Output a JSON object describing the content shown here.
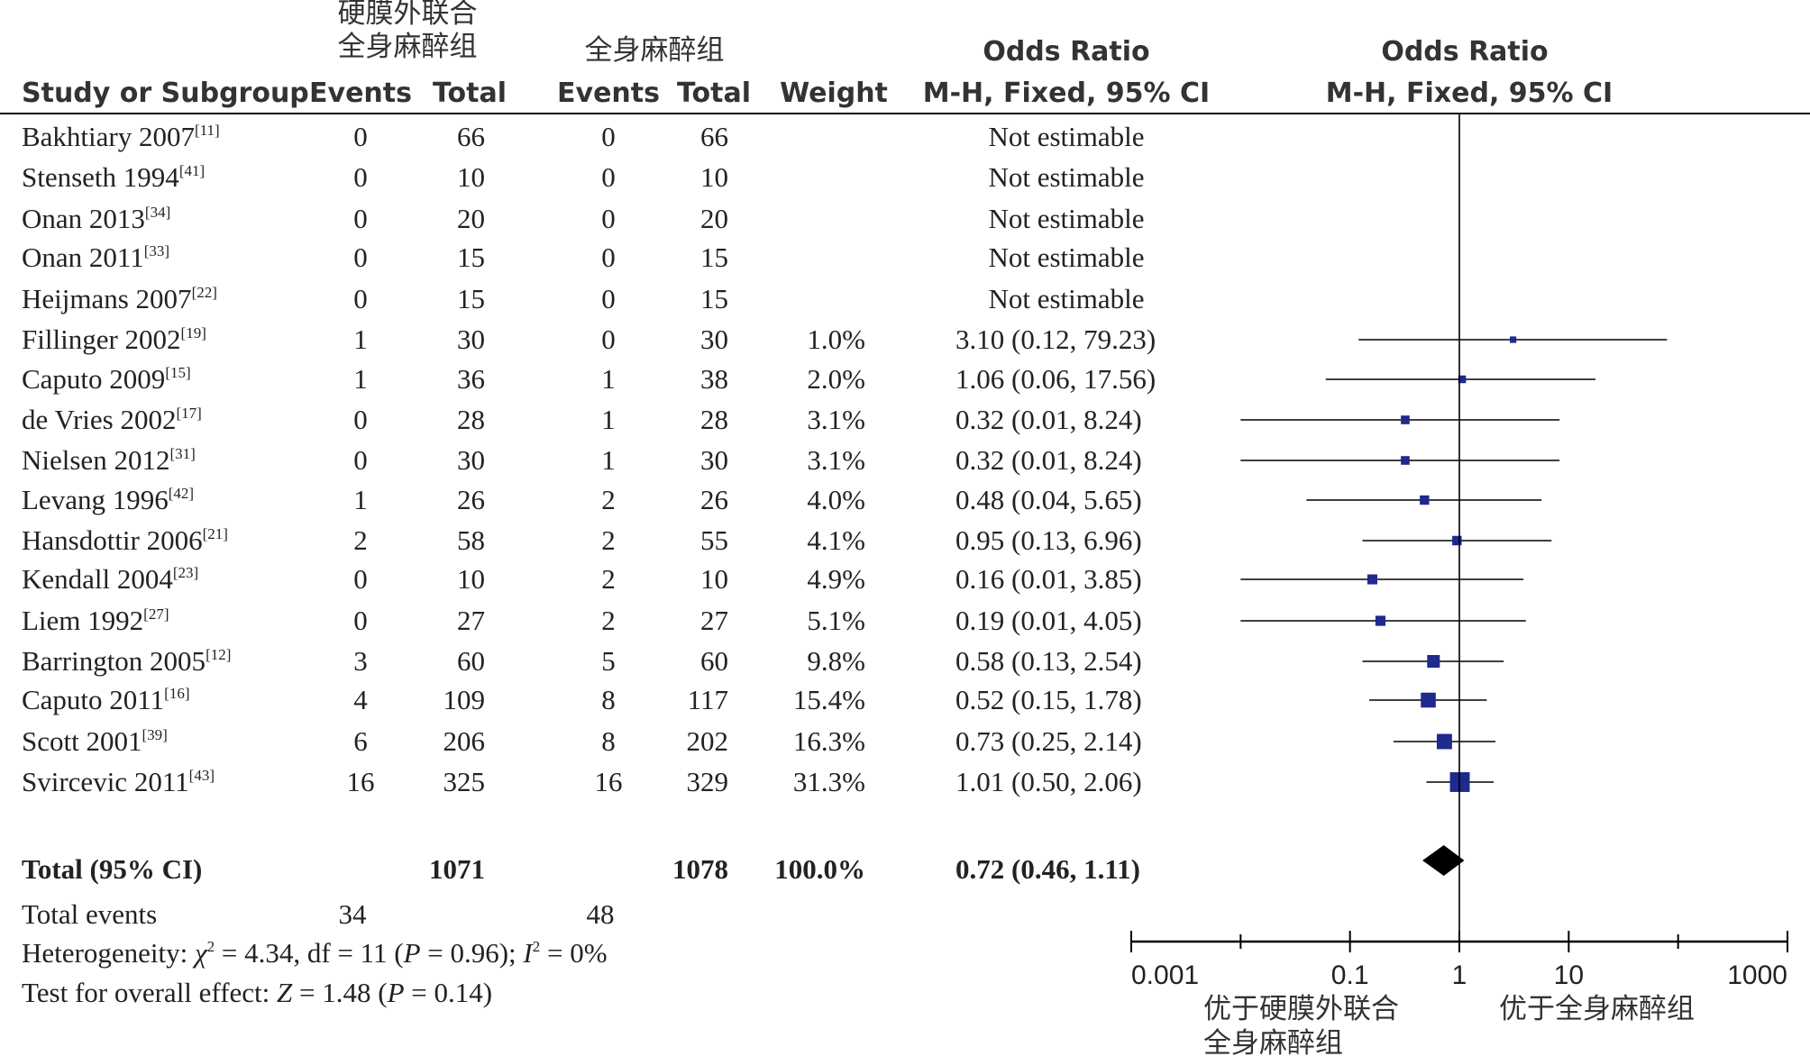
{
  "chart_data": {
    "type": "forest",
    "headers": {
      "study": "Study or Subgroup",
      "group1_line1": "硬膜外联合",
      "group1_line2": "全身麻醉组",
      "group2": "全身麻醉组",
      "events": "Events",
      "total": "Total",
      "weight": "Weight",
      "or_title": "Odds Ratio",
      "or_method": "M-H, Fixed, 95% CI"
    },
    "studies": [
      {
        "name": "Bakhtiary 2007",
        "ref": "[11]",
        "e1": "0",
        "t1": "66",
        "e2": "0",
        "t2": "66",
        "weight": "",
        "ci_text": "Not estimable",
        "or": null,
        "lo": null,
        "hi": null,
        "w": 0
      },
      {
        "name": "Stenseth 1994",
        "ref": "[41]",
        "e1": "0",
        "t1": "10",
        "e2": "0",
        "t2": "10",
        "weight": "",
        "ci_text": "Not estimable",
        "or": null,
        "lo": null,
        "hi": null,
        "w": 0
      },
      {
        "name": "Onan 2013",
        "ref": "[34]",
        "e1": "0",
        "t1": "20",
        "e2": "0",
        "t2": "20",
        "weight": "",
        "ci_text": "Not estimable",
        "or": null,
        "lo": null,
        "hi": null,
        "w": 0
      },
      {
        "name": "Onan 2011",
        "ref": "[33]",
        "e1": "0",
        "t1": "15",
        "e2": "0",
        "t2": "15",
        "weight": "",
        "ci_text": "Not estimable",
        "or": null,
        "lo": null,
        "hi": null,
        "w": 0
      },
      {
        "name": "Heijmans 2007",
        "ref": "[22]",
        "e1": "0",
        "t1": "15",
        "e2": "0",
        "t2": "15",
        "weight": "",
        "ci_text": "Not estimable",
        "or": null,
        "lo": null,
        "hi": null,
        "w": 0
      },
      {
        "name": "Fillinger 2002",
        "ref": "[19]",
        "e1": "1",
        "t1": "30",
        "e2": "0",
        "t2": "30",
        "weight": "1.0%",
        "ci_text": "3.10 (0.12, 79.23)",
        "or": 3.1,
        "lo": 0.12,
        "hi": 79.23,
        "w": 1.0
      },
      {
        "name": "Caputo 2009",
        "ref": "[15]",
        "e1": "1",
        "t1": "36",
        "e2": "1",
        "t2": "38",
        "weight": "2.0%",
        "ci_text": "1.06 (0.06, 17.56)",
        "or": 1.06,
        "lo": 0.06,
        "hi": 17.56,
        "w": 2.0
      },
      {
        "name": "de Vries 2002",
        "ref": "[17]",
        "e1": "0",
        "t1": "28",
        "e2": "1",
        "t2": "28",
        "weight": "3.1%",
        "ci_text": "0.32 (0.01, 8.24)",
        "or": 0.32,
        "lo": 0.01,
        "hi": 8.24,
        "w": 3.1
      },
      {
        "name": "Nielsen 2012",
        "ref": "[31]",
        "e1": "0",
        "t1": "30",
        "e2": "1",
        "t2": "30",
        "weight": "3.1%",
        "ci_text": "0.32 (0.01, 8.24)",
        "or": 0.32,
        "lo": 0.01,
        "hi": 8.24,
        "w": 3.1
      },
      {
        "name": "Levang 1996",
        "ref": "[42]",
        "e1": "1",
        "t1": "26",
        "e2": "2",
        "t2": "26",
        "weight": "4.0%",
        "ci_text": "0.48 (0.04, 5.65)",
        "or": 0.48,
        "lo": 0.04,
        "hi": 5.65,
        "w": 4.0
      },
      {
        "name": "Hansdottir 2006",
        "ref": "[21]",
        "e1": "2",
        "t1": "58",
        "e2": "2",
        "t2": "55",
        "weight": "4.1%",
        "ci_text": "0.95 (0.13, 6.96)",
        "or": 0.95,
        "lo": 0.13,
        "hi": 6.96,
        "w": 4.1
      },
      {
        "name": "Kendall 2004",
        "ref": "[23]",
        "e1": "0",
        "t1": "10",
        "e2": "2",
        "t2": "10",
        "weight": "4.9%",
        "ci_text": "0.16 (0.01, 3.85)",
        "or": 0.16,
        "lo": 0.01,
        "hi": 3.85,
        "w": 4.9
      },
      {
        "name": "Liem 1992",
        "ref": "[27]",
        "e1": "0",
        "t1": "27",
        "e2": "2",
        "t2": "27",
        "weight": "5.1%",
        "ci_text": "0.19 (0.01, 4.05)",
        "or": 0.19,
        "lo": 0.01,
        "hi": 4.05,
        "w": 5.1
      },
      {
        "name": "Barrington 2005",
        "ref": "[12]",
        "e1": "3",
        "t1": "60",
        "e2": "5",
        "t2": "60",
        "weight": "9.8%",
        "ci_text": "0.58 (0.13, 2.54)",
        "or": 0.58,
        "lo": 0.13,
        "hi": 2.54,
        "w": 9.8
      },
      {
        "name": "Caputo 2011",
        "ref": "[16]",
        "e1": "4",
        "t1": "109",
        "e2": "8",
        "t2": "117",
        "weight": "15.4%",
        "ci_text": "0.52 (0.15, 1.78)",
        "or": 0.52,
        "lo": 0.15,
        "hi": 1.78,
        "w": 15.4
      },
      {
        "name": "Scott 2001",
        "ref": "[39]",
        "e1": "6",
        "t1": "206",
        "e2": "8",
        "t2": "202",
        "weight": "16.3%",
        "ci_text": "0.73 (0.25, 2.14)",
        "or": 0.73,
        "lo": 0.25,
        "hi": 2.14,
        "w": 16.3
      },
      {
        "name": "Svircevic 2011",
        "ref": "[43]",
        "e1": "16",
        "t1": "325",
        "e2": "16",
        "t2": "329",
        "weight": "31.3%",
        "ci_text": "1.01 (0.50, 2.06)",
        "or": 1.01,
        "lo": 0.5,
        "hi": 2.06,
        "w": 31.3
      }
    ],
    "total": {
      "label": "Total (95% CI)",
      "t1": "1071",
      "t2": "1078",
      "weight": "100.0%",
      "ci_text": "0.72 (0.46, 1.11)",
      "or": 0.72,
      "lo": 0.46,
      "hi": 1.11
    },
    "total_events": {
      "label": "Total events",
      "e1": "34",
      "e2": "48"
    },
    "heterogeneity": {
      "prefix": "Heterogeneity: ",
      "chi": "χ",
      "chi_sup": "2",
      "chi_val": " = 4.34, df = 11 (",
      "p": "P",
      "p_val": " = 0.96); ",
      "i": "I",
      "i_sup": "2",
      "i_val": " = 0%"
    },
    "overall_effect": {
      "prefix": "Test for overall effect: ",
      "z": "Z",
      "z_val": " = 1.48 (",
      "p": "P",
      "p_val": " = 0.14)"
    },
    "axis": {
      "scale": "log",
      "min": 0.001,
      "max": 1000,
      "ticks": [
        0.001,
        0.1,
        1,
        10,
        1000
      ],
      "tick_labels": [
        "0.001",
        "0.1",
        "1",
        "10",
        "1000"
      ],
      "minor_ticks": [
        0.01,
        100
      ]
    },
    "favours_left_line1": "优于硬膜外联合",
    "favours_left_line2": "全身麻醉组",
    "favours_right": "优于全身麻醉组",
    "colors": {
      "marker": "#1f2a8c",
      "diamond": "#000000",
      "line": "#000000",
      "text": "#222222"
    }
  }
}
